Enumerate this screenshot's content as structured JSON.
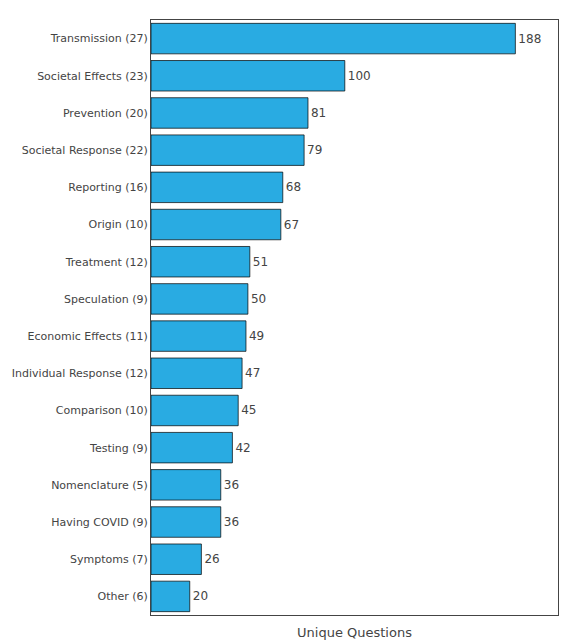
{
  "chart_data": {
    "type": "bar",
    "orientation": "horizontal",
    "categories": [
      "Transmission (27)",
      "Societal Effects (23)",
      "Prevention (20)",
      "Societal Response (22)",
      "Reporting (16)",
      "Origin (10)",
      "Treatment (12)",
      "Speculation (9)",
      "Economic Effects (11)",
      "Individual Response (12)",
      "Comparison (10)",
      "Testing (9)",
      "Nomenclature (5)",
      "Having COVID (9)",
      "Symptoms (7)",
      "Other (6)"
    ],
    "values": [
      188,
      100,
      81,
      79,
      68,
      67,
      51,
      50,
      49,
      47,
      45,
      42,
      36,
      36,
      26,
      20
    ],
    "color": "#29ABE2",
    "xlabel": "Unique Questions",
    "xlim": [
      0,
      210
    ],
    "data_labels": true,
    "tick_labels": "y",
    "grid": false
  }
}
